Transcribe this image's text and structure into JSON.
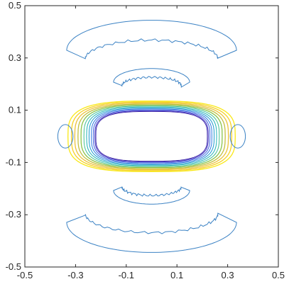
{
  "chart_data": {
    "type": "contour",
    "title": "",
    "xlabel": "",
    "ylabel": "",
    "xlim": [
      -0.5,
      0.5
    ],
    "ylim": [
      -0.5,
      0.5
    ],
    "x_ticks": [
      -0.5,
      -0.3,
      -0.1,
      0.1,
      0.3,
      0.5
    ],
    "y_ticks": [
      -0.5,
      -0.3,
      -0.1,
      0.1,
      0.3,
      0.5
    ],
    "x_tick_labels": [
      "-0.5",
      "-0.3",
      "-0.1",
      "0.1",
      "0.3",
      "0.5"
    ],
    "y_tick_labels": [
      "-0.5",
      "-0.3",
      "-0.1",
      "0.1",
      "0.3",
      "0.5"
    ],
    "grid": false,
    "colormap": "parula",
    "colors": {
      "low": "#3d26a8",
      "mid_low": "#2f7ce0",
      "mid": "#21b3b5",
      "mid_high": "#8bc34a",
      "high": "#f0c020",
      "outer": "#3b82c4"
    },
    "contours": [
      {
        "name": "outer-arc-top",
        "center": [
          0.0,
          0.335
        ],
        "rx": 0.335,
        "ry": 0.115,
        "thickness": 0.038,
        "color": "#3b82c4"
      },
      {
        "name": "outer-arc-bottom",
        "center": [
          0.0,
          -0.335
        ],
        "rx": 0.335,
        "ry": 0.115,
        "thickness": 0.038,
        "color": "#3b82c4"
      },
      {
        "name": "inner-arc-top",
        "center": [
          0.0,
          0.21
        ],
        "rx": 0.15,
        "ry": 0.052,
        "thickness": 0.016,
        "color": "#3b82c4"
      },
      {
        "name": "inner-arc-bottom",
        "center": [
          0.0,
          -0.21
        ],
        "rx": 0.15,
        "ry": 0.052,
        "thickness": 0.016,
        "color": "#3b82c4"
      }
    ],
    "central_ring": {
      "center": [
        0.0,
        0.0
      ],
      "inner_rx": 0.22,
      "inner_ry": 0.095,
      "outer_rx": 0.33,
      "outer_ry": 0.135,
      "levels": 12
    },
    "side_lobes": [
      {
        "center": [
          -0.34,
          0.0
        ],
        "rx": 0.03,
        "ry": 0.045
      },
      {
        "center": [
          0.34,
          0.0
        ],
        "rx": 0.03,
        "ry": 0.045
      }
    ]
  }
}
